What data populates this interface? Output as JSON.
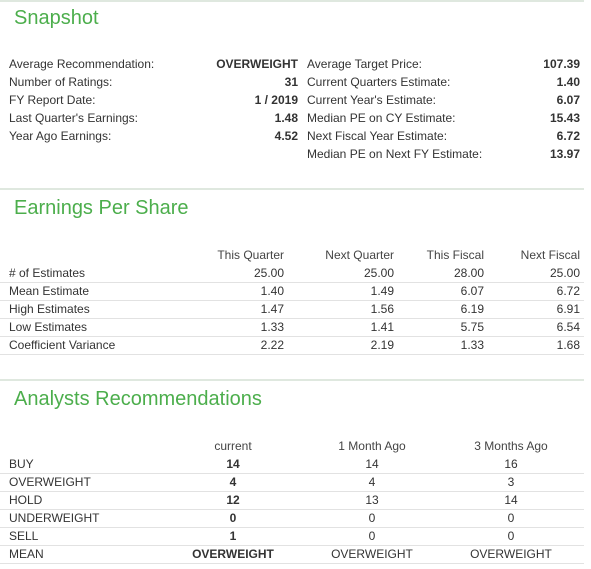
{
  "snapshot": {
    "title": "Snapshot",
    "left": [
      {
        "label": "Average Recommendation:",
        "value": "OVERWEIGHT"
      },
      {
        "label": "Number of Ratings:",
        "value": "31"
      },
      {
        "label": "FY Report Date:",
        "value": "1 / 2019"
      },
      {
        "label": "Last Quarter's Earnings:",
        "value": "1.48"
      },
      {
        "label": "Year Ago Earnings:",
        "value": "4.52"
      }
    ],
    "right": [
      {
        "label": "Average Target Price:",
        "value": "107.39"
      },
      {
        "label": "Current Quarters Estimate:",
        "value": "1.40"
      },
      {
        "label": "Current Year's Estimate:",
        "value": "6.07"
      },
      {
        "label": "Median PE on CY Estimate:",
        "value": "15.43"
      },
      {
        "label": "Next Fiscal Year Estimate:",
        "value": "6.72"
      },
      {
        "label": "Median PE on Next FY Estimate:",
        "value": "13.97"
      }
    ]
  },
  "eps": {
    "title": "Earnings Per Share",
    "columns": [
      "This Quarter",
      "Next Quarter",
      "This Fiscal",
      "Next Fiscal"
    ],
    "rows": [
      {
        "label": "# of Estimates",
        "values": [
          "25.00",
          "25.00",
          "28.00",
          "25.00"
        ]
      },
      {
        "label": "Mean Estimate",
        "values": [
          "1.40",
          "1.49",
          "6.07",
          "6.72"
        ]
      },
      {
        "label": "High Estimates",
        "values": [
          "1.47",
          "1.56",
          "6.19",
          "6.91"
        ]
      },
      {
        "label": "Low Estimates",
        "values": [
          "1.33",
          "1.41",
          "5.75",
          "6.54"
        ]
      },
      {
        "label": "Coefficient Variance",
        "values": [
          "2.22",
          "2.19",
          "1.33",
          "1.68"
        ]
      }
    ]
  },
  "analysts": {
    "title": "Analysts Recommendations",
    "columns": [
      "current",
      "1 Month Ago",
      "3 Months Ago"
    ],
    "rows": [
      {
        "label": "BUY",
        "values": [
          "14",
          "14",
          "16"
        ]
      },
      {
        "label": "OVERWEIGHT",
        "values": [
          "4",
          "4",
          "3"
        ]
      },
      {
        "label": "HOLD",
        "values": [
          "12",
          "13",
          "14"
        ]
      },
      {
        "label": "UNDERWEIGHT",
        "values": [
          "0",
          "0",
          "0"
        ]
      },
      {
        "label": "SELL",
        "values": [
          "1",
          "0",
          "0"
        ]
      },
      {
        "label": "MEAN",
        "values": [
          "OVERWEIGHT",
          "OVERWEIGHT",
          "OVERWEIGHT"
        ]
      }
    ]
  }
}
